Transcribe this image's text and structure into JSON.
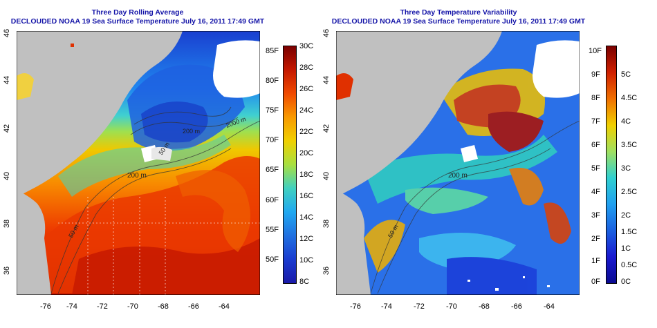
{
  "left": {
    "title1": "Three Day Rolling Average",
    "title2": "DECLOUDED NOAA 19 Sea Surface Temperature July 16, 2011 17:49 GMT",
    "lon_ticks": [
      "-76",
      "-74",
      "-72",
      "-70",
      "-68",
      "-66",
      "-64"
    ],
    "lat_ticks": [
      "46",
      "44",
      "42",
      "40",
      "38",
      "36"
    ],
    "contours": [
      "200 m",
      "200 m",
      "50 m",
      "50 m",
      "2000 m"
    ],
    "colorbar_f": [
      "85F",
      "80F",
      "75F",
      "70F",
      "65F",
      "60F",
      "55F",
      "50F"
    ],
    "colorbar_c": [
      "30C",
      "28C",
      "26C",
      "24C",
      "22C",
      "20C",
      "18C",
      "16C",
      "14C",
      "12C",
      "10C",
      "8C"
    ]
  },
  "right": {
    "title1": "Three Day Temperature Variability",
    "title2": "DECLOUDED NOAA 19 Sea Surface Temperature July 16, 2011 17:49 GMT",
    "lon_ticks": [
      "-76",
      "-74",
      "-72",
      "-70",
      "-68",
      "-66",
      "-64"
    ],
    "lat_ticks": [
      "46",
      "44",
      "42",
      "40",
      "38",
      "36"
    ],
    "contours": [
      "200 m",
      "50 m"
    ],
    "colorbar_f": [
      "10F",
      "9F",
      "8F",
      "7F",
      "6F",
      "5F",
      "4F",
      "3F",
      "2F",
      "1F",
      "0F"
    ],
    "colorbar_c": [
      "5C",
      "4.5C",
      "4C",
      "3.5C",
      "3C",
      "2.5C",
      "2C",
      "1.5C",
      "1C",
      "0.5C",
      "0C"
    ]
  },
  "colors": {
    "land": "#c0c0c0",
    "title": "#1515a8",
    "sst_scale": [
      "#7a0000",
      "#c81400",
      "#f04a00",
      "#f89a00",
      "#f0d000",
      "#a8e040",
      "#40d0c0",
      "#20a8f0",
      "#2070e0",
      "#1a3cd0",
      "#1a1aa8"
    ],
    "var_scale": [
      "#7a0000",
      "#d02000",
      "#f07000",
      "#f0d000",
      "#a0e060",
      "#30d0d0",
      "#20a0f0",
      "#1a60e0",
      "#1a1ad0",
      "#0a0a90"
    ]
  }
}
